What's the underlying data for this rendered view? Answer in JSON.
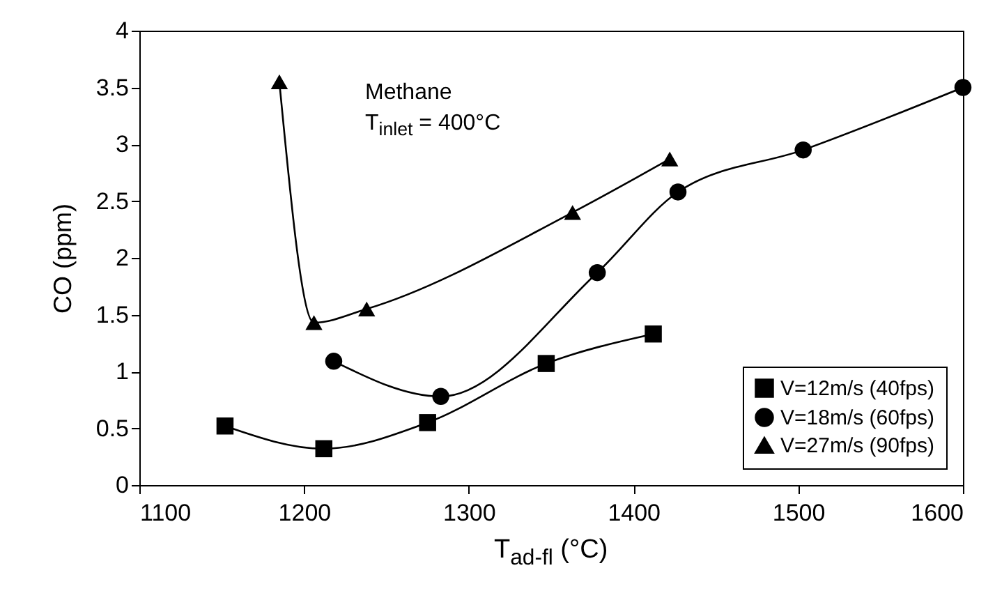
{
  "chart_data": {
    "type": "line",
    "xlabel": "T$_{ad-fl}$ (°C)",
    "ylabel": "CO (ppm)",
    "annotations": [
      "Methane",
      "T$_{inlet}$ = 400°C"
    ],
    "xlim": [
      1100,
      1600
    ],
    "xticks": [
      1100,
      1200,
      1300,
      1400,
      1500,
      1600
    ],
    "ylim": [
      0,
      4
    ],
    "yticks": [
      0,
      0.5,
      1,
      1.5,
      2,
      2.5,
      3,
      3.5,
      4
    ],
    "grid": false,
    "legend": "bottom right",
    "line_style": "solid",
    "series": [
      {
        "name": "V=12m/s (40fps)",
        "color": "#000000",
        "marker": "square",
        "x": [
          1152,
          1212,
          1275,
          1347,
          1412
        ],
        "values": [
          0.52,
          0.32,
          0.55,
          1.07,
          1.33
        ]
      },
      {
        "name": "V=18m/s (60fps)",
        "color": "#000000",
        "marker": "circle",
        "x": [
          1218,
          1283,
          1378,
          1427,
          1503,
          1600
        ],
        "values": [
          1.09,
          0.78,
          1.87,
          2.58,
          2.95,
          3.5
        ]
      },
      {
        "name": "V=27m/s (90fps)",
        "color": "#000000",
        "marker": "triangle",
        "x": [
          1185,
          1206,
          1238,
          1363,
          1422
        ],
        "values": [
          3.55,
          1.43,
          1.55,
          2.4,
          2.87
        ]
      }
    ]
  }
}
